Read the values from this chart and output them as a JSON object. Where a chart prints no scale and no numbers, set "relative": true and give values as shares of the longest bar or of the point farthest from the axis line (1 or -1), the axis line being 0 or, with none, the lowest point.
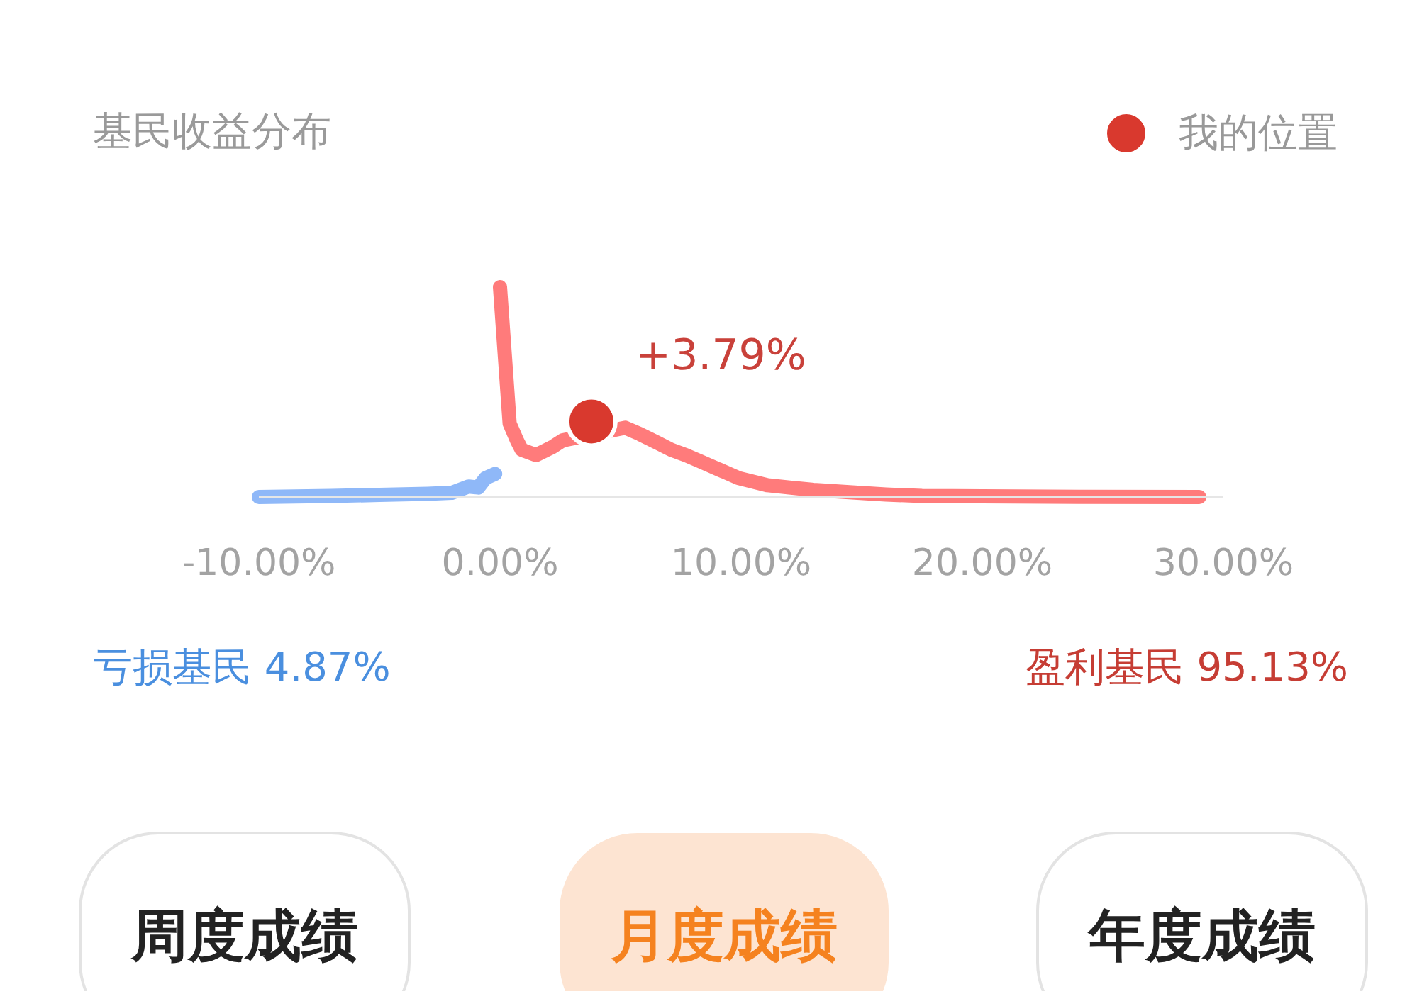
{
  "chart_data": {
    "type": "line",
    "title": "基民收益分布",
    "relative": true,
    "xlim": [
      -10,
      30
    ],
    "xticks": [
      {
        "value": -10,
        "label": "-10.00%"
      },
      {
        "value": 0,
        "label": "0.00%"
      },
      {
        "value": 10,
        "label": "10.00%"
      },
      {
        "value": 20,
        "label": "20.00%"
      },
      {
        "value": 30,
        "label": "30.00%"
      }
    ],
    "series": [
      {
        "color": "#8fb8f8",
        "x": [
          -10,
          -7,
          -5,
          -3,
          -2,
          -1.3,
          -0.9,
          -0.6,
          -0.2
        ],
        "values": [
          0,
          0.005,
          0.01,
          0.015,
          0.02,
          0.05,
          0.045,
          0.09,
          0.11
        ]
      },
      {
        "color": "#ff7b7b",
        "x": [
          0,
          0.4,
          0.7,
          0.9,
          1.5,
          2.2,
          2.6,
          5.2,
          5.8,
          6.5,
          7.1,
          7.7,
          8.3,
          9.1,
          9.9,
          11.1,
          12.0,
          13.0,
          14.6,
          16.0,
          17.5,
          20.0,
          24.0,
          29.0
        ],
        "values": [
          1,
          0.35,
          0.27,
          0.225,
          0.2,
          0.24,
          0.27,
          0.33,
          0.3,
          0.26,
          0.225,
          0.2,
          0.17,
          0.13,
          0.09,
          0.056,
          0.045,
          0.034,
          0.022,
          0.012,
          0.005,
          0.003,
          0.001,
          0
        ]
      },
      {
        "name": "我的位置",
        "type": "scatter",
        "marker": "circle",
        "color": "#d9392e",
        "x": [
          3.79
        ],
        "values": [
          0.36
        ]
      }
    ],
    "annotations": [
      {
        "text": "+3.79%",
        "x": 3.79,
        "y": 0.36
      },
      "亏损基民 4.87%",
      "盈利基民 95.13%",
      "周度成绩",
      "月度成绩",
      "年度成绩"
    ],
    "legend": "top right",
    "grid": false
  }
}
